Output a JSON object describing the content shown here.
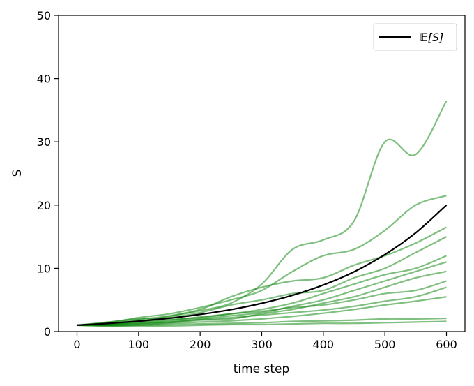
{
  "chart_data": {
    "type": "line",
    "title": "",
    "xlabel": "time step",
    "ylabel": "S",
    "xlim": [
      -30,
      630
    ],
    "ylim": [
      0,
      50
    ],
    "xticks": [
      0,
      100,
      200,
      300,
      400,
      500,
      600
    ],
    "yticks": [
      0,
      10,
      20,
      30,
      40,
      50
    ],
    "grid": false,
    "legend": {
      "position": "top-right",
      "entries": [
        "𝔼[S]"
      ]
    },
    "colors": {
      "paths": "#008000",
      "expected": "#000000"
    },
    "expected": {
      "name": "𝔼[S]",
      "x": [
        0,
        50,
        100,
        150,
        200,
        250,
        300,
        350,
        400,
        450,
        500,
        550,
        600
      ],
      "values": [
        1.0,
        1.28,
        1.65,
        2.11,
        2.71,
        3.47,
        4.47,
        5.73,
        7.36,
        9.45,
        12.17,
        15.61,
        20.0
      ]
    },
    "paths": {
      "x": [
        0,
        50,
        100,
        150,
        200,
        250,
        300,
        350,
        400,
        450,
        500,
        550,
        600
      ],
      "series": [
        {
          "values": [
            1.0,
            1.2,
            1.6,
            2.4,
            3.3,
            4.5,
            7.5,
            13.0,
            14.5,
            17.5,
            30.0,
            28.0,
            36.5
          ]
        },
        {
          "values": [
            1.0,
            1.4,
            2.2,
            2.8,
            3.8,
            5.0,
            6.5,
            9.5,
            12.0,
            13.0,
            16.0,
            20.0,
            21.5
          ]
        },
        {
          "values": [
            1.0,
            1.3,
            1.9,
            2.5,
            3.5,
            5.5,
            7.0,
            8.0,
            8.5,
            10.5,
            12.0,
            14.0,
            16.5
          ]
        },
        {
          "values": [
            1.0,
            1.5,
            2.0,
            2.2,
            3.0,
            4.2,
            5.0,
            6.0,
            6.5,
            8.5,
            10.0,
            12.5,
            15.0
          ]
        },
        {
          "values": [
            1.0,
            1.2,
            1.5,
            1.8,
            2.3,
            2.8,
            3.5,
            4.5,
            6.0,
            7.5,
            9.0,
            10.0,
            12.0
          ]
        },
        {
          "values": [
            1.0,
            1.1,
            1.3,
            1.6,
            2.0,
            2.5,
            3.0,
            4.0,
            5.0,
            6.5,
            8.0,
            9.5,
            11.0
          ]
        },
        {
          "values": [
            1.0,
            1.0,
            1.2,
            1.4,
            1.8,
            2.0,
            2.8,
            3.5,
            4.5,
            5.5,
            7.0,
            8.5,
            9.5
          ]
        },
        {
          "values": [
            1.0,
            1.3,
            1.6,
            1.9,
            2.2,
            2.8,
            3.2,
            3.8,
            4.2,
            5.0,
            6.0,
            6.5,
            8.0
          ]
        },
        {
          "values": [
            1.0,
            1.1,
            1.4,
            1.5,
            1.9,
            2.2,
            2.6,
            3.0,
            3.4,
            4.0,
            4.8,
            5.5,
            7.0
          ]
        },
        {
          "values": [
            1.0,
            1.0,
            1.1,
            1.3,
            1.5,
            1.7,
            2.0,
            2.4,
            2.9,
            3.5,
            4.2,
            4.8,
            5.5
          ]
        },
        {
          "values": [
            1.0,
            0.9,
            1.0,
            1.1,
            1.2,
            1.3,
            1.4,
            1.6,
            1.7,
            1.8,
            2.0,
            2.0,
            2.1
          ]
        },
        {
          "values": [
            1.0,
            0.9,
            0.9,
            0.9,
            1.0,
            1.1,
            1.1,
            1.2,
            1.3,
            1.3,
            1.4,
            1.5,
            1.6
          ]
        }
      ]
    }
  }
}
